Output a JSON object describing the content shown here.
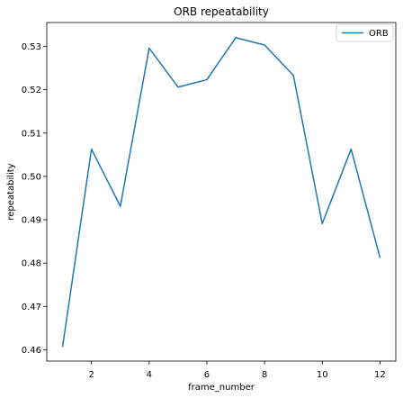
{
  "chart_data": {
    "type": "line",
    "title": "ORB repeatability",
    "xlabel": "frame_number",
    "ylabel": "repeatability",
    "xlim": [
      0.45,
      12.55
    ],
    "ylim": [
      0.4574,
      0.5355
    ],
    "xticks": [
      2,
      4,
      6,
      8,
      10,
      12
    ],
    "yticks": [
      0.46,
      0.47,
      0.48,
      0.49,
      0.5,
      0.51,
      0.52,
      0.53
    ],
    "ytick_labels": [
      "0.46",
      "0.47",
      "0.48",
      "0.49",
      "0.50",
      "0.51",
      "0.52",
      "0.53"
    ],
    "grid": false,
    "legend_position": "top-right",
    "series": [
      {
        "name": "ORB",
        "color": "#1f77b4",
        "x": [
          1,
          2,
          3,
          4,
          5,
          6,
          7,
          8,
          9,
          10,
          11,
          12
        ],
        "y": [
          0.4608,
          0.5063,
          0.4931,
          0.5296,
          0.5206,
          0.5223,
          0.532,
          0.5303,
          0.5233,
          0.4891,
          0.5063,
          0.4813
        ]
      }
    ]
  }
}
